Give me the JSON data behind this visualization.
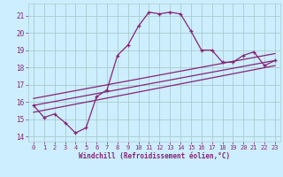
{
  "title": "",
  "xlabel": "Windchill (Refroidissement éolien,°C)",
  "background_color": "#cceeff",
  "grid_color": "#aacccc",
  "line_color": "#882277",
  "xlim": [
    -0.5,
    23.5
  ],
  "ylim": [
    13.7,
    21.7
  ],
  "yticks": [
    14,
    15,
    16,
    17,
    18,
    19,
    20,
    21
  ],
  "xticks": [
    0,
    1,
    2,
    3,
    4,
    5,
    6,
    7,
    8,
    9,
    10,
    11,
    12,
    13,
    14,
    15,
    16,
    17,
    18,
    19,
    20,
    21,
    22,
    23
  ],
  "curve_x": [
    0,
    1,
    2,
    3,
    4,
    5,
    6,
    7,
    8,
    9,
    10,
    11,
    12,
    13,
    14,
    15,
    16,
    17,
    18,
    19,
    20,
    21,
    22,
    23
  ],
  "curve_y": [
    15.8,
    15.1,
    15.3,
    14.8,
    14.2,
    14.5,
    16.3,
    16.7,
    18.7,
    19.3,
    20.4,
    21.2,
    21.1,
    21.2,
    21.1,
    20.1,
    19.0,
    19.0,
    18.3,
    18.3,
    18.7,
    18.9,
    18.1,
    18.4
  ],
  "line1_x": [
    0,
    23
  ],
  "line1_y": [
    15.4,
    18.1
  ],
  "line2_x": [
    0,
    23
  ],
  "line2_y": [
    15.8,
    18.4
  ],
  "line3_x": [
    0,
    23
  ],
  "line3_y": [
    16.2,
    18.8
  ]
}
